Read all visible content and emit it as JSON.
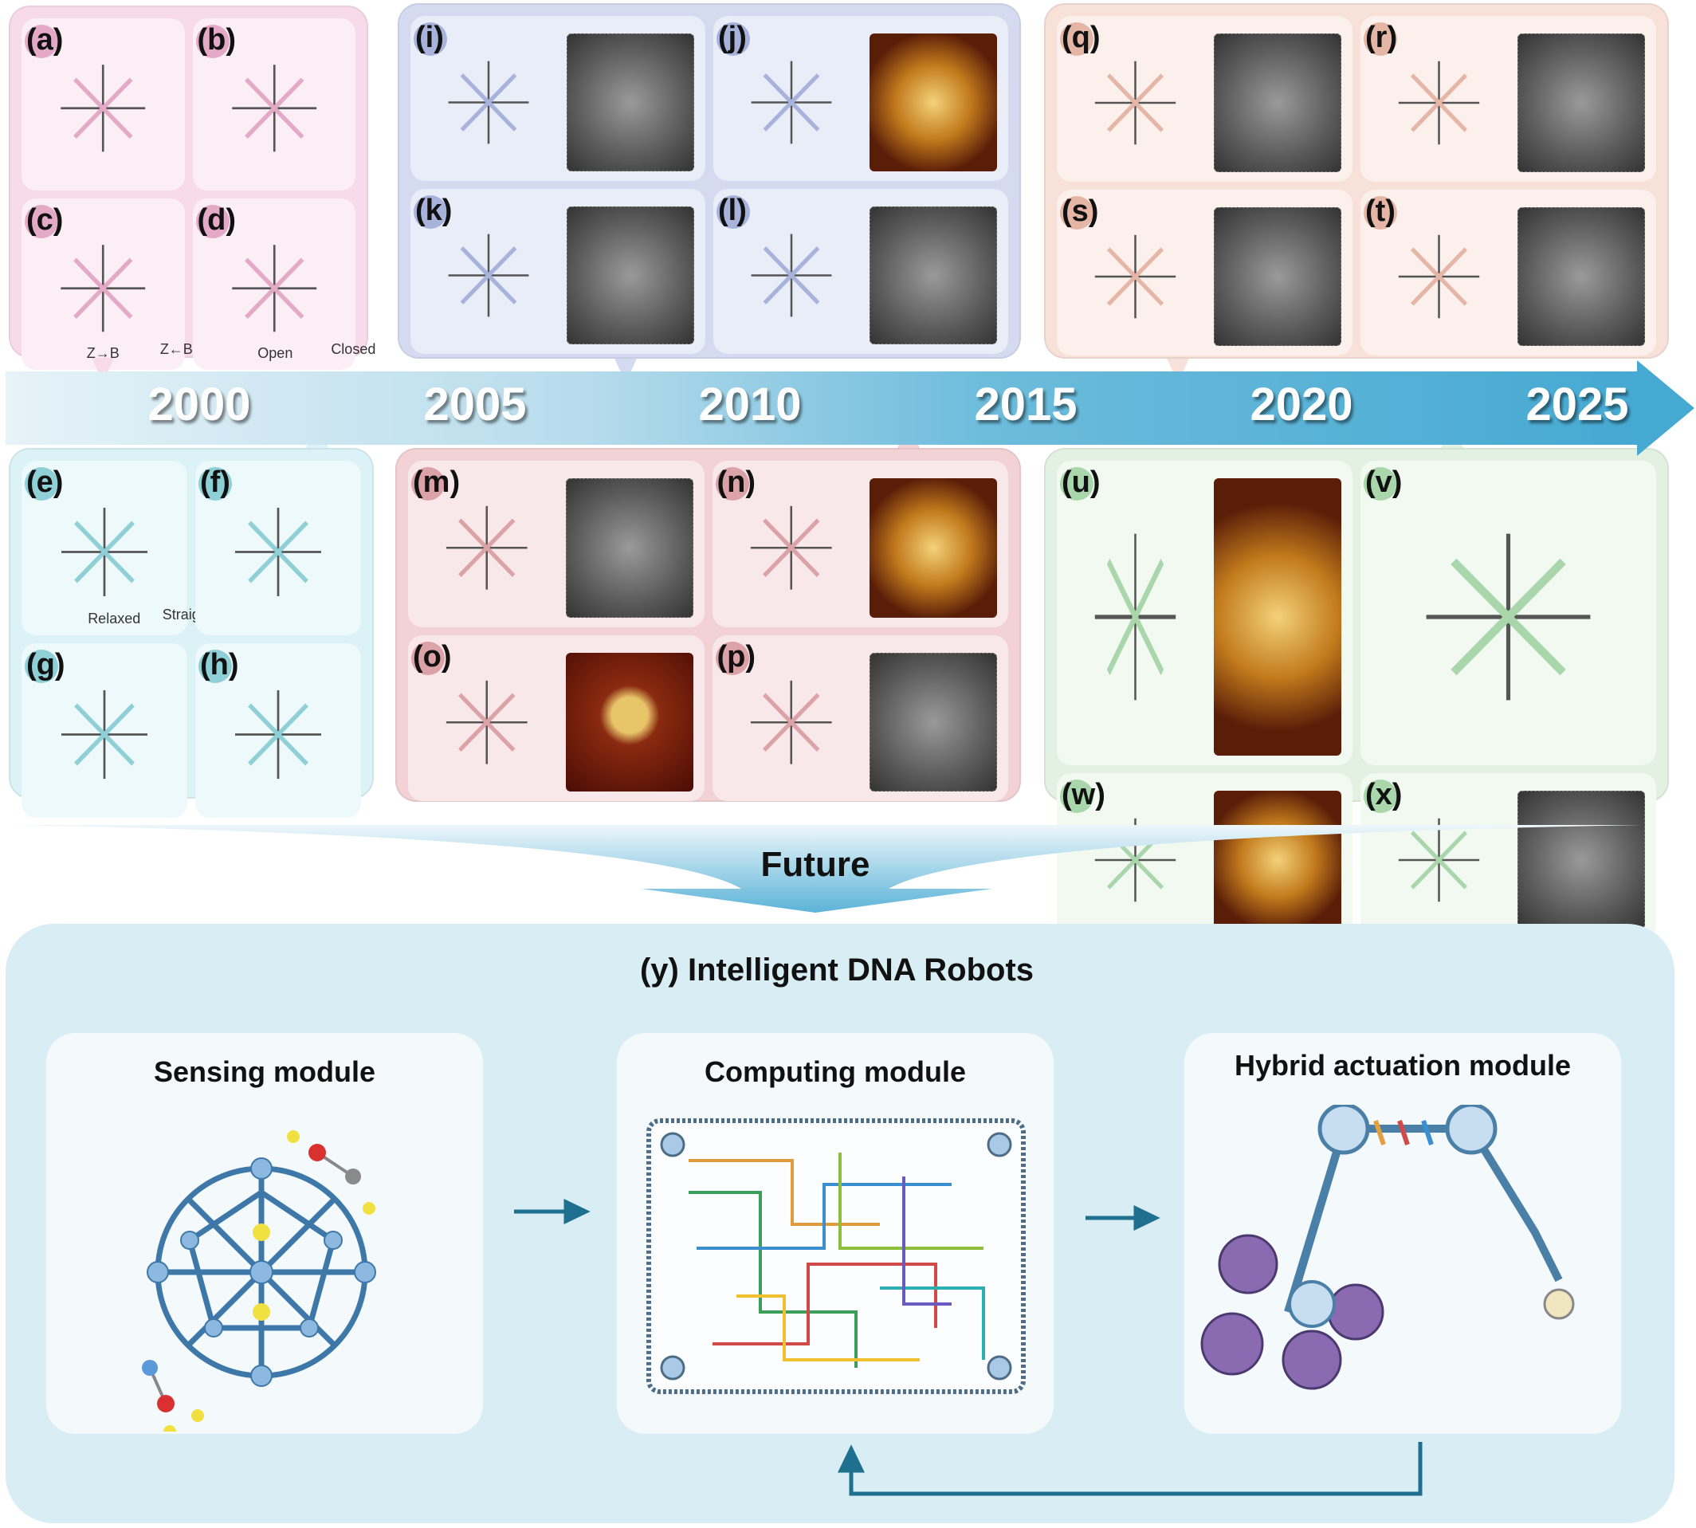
{
  "timeline": {
    "years": [
      "2000",
      "2005",
      "2010",
      "2015",
      "2020",
      "2025"
    ],
    "color": "#46a9d2"
  },
  "groups": [
    {
      "id": "g1",
      "bg": "#f7dbea",
      "inner": "#fbeef5",
      "dot": "#e3a9c6",
      "panels": [
        {
          "label": "(a)",
          "images": [
            "schematic"
          ]
        },
        {
          "label": "(b)",
          "images": [
            "schematic"
          ]
        },
        {
          "label": "(c)",
          "images": [
            "schematic"
          ],
          "text": [
            "Z→B",
            "Z←B"
          ]
        },
        {
          "label": "(d)",
          "images": [
            "schematic"
          ],
          "text": [
            "Open",
            "Closed"
          ]
        }
      ]
    },
    {
      "id": "g2",
      "bg": "#d4dbf0",
      "inner": "#e9edf8",
      "dot": "#a8b3dc",
      "panels": [
        {
          "label": "(i)",
          "images": [
            "schematic",
            "micrograph"
          ]
        },
        {
          "label": "(j)",
          "images": [
            "schematic",
            "afm"
          ]
        },
        {
          "label": "(k)",
          "images": [
            "schematic",
            "micrograph"
          ]
        },
        {
          "label": "(l)",
          "images": [
            "schematic",
            "micrograph"
          ]
        }
      ]
    },
    {
      "id": "g3",
      "bg": "#f7e1d9",
      "inner": "#fbf0ec",
      "dot": "#e5b6a6",
      "panels": [
        {
          "label": "(q)",
          "images": [
            "schematic",
            "micrograph"
          ]
        },
        {
          "label": "(r)",
          "images": [
            "schematic",
            "micrograph"
          ]
        },
        {
          "label": "(s)",
          "images": [
            "schematic",
            "micrograph"
          ]
        },
        {
          "label": "(t)",
          "images": [
            "schematic",
            "micrograph"
          ]
        }
      ]
    },
    {
      "id": "g4",
      "bg": "#dbf2f6",
      "inner": "#eef9fb",
      "dot": "#8fcfd6",
      "panels": [
        {
          "label": "(e)",
          "images": [
            "schematic"
          ],
          "text": [
            "Relaxed",
            "Straightened"
          ]
        },
        {
          "label": "(f)",
          "images": [
            "schematic"
          ]
        },
        {
          "label": "(g)",
          "images": [
            "schematic"
          ]
        },
        {
          "label": "(h)",
          "images": [
            "schematic"
          ]
        }
      ]
    },
    {
      "id": "g5",
      "bg": "#f2d2d5",
      "inner": "#f9e8ea",
      "dot": "#dba3a8",
      "panels": [
        {
          "label": "(m)",
          "images": [
            "schematic",
            "micrograph"
          ]
        },
        {
          "label": "(n)",
          "images": [
            "schematic",
            "afm"
          ]
        },
        {
          "label": "(o)",
          "images": [
            "schematic",
            "afm-red"
          ]
        },
        {
          "label": "(p)",
          "images": [
            "schematic",
            "micrograph"
          ]
        }
      ]
    },
    {
      "id": "g6",
      "bg": "#e2f1e2",
      "inner": "#f1f9f1",
      "dot": "#a9d6ab",
      "panels": [
        {
          "label": "(u)",
          "images": [
            "schematic",
            "afm"
          ]
        },
        {
          "label": "(v)",
          "images": [
            "schematic"
          ]
        },
        {
          "label": "(w)",
          "images": [
            "schematic",
            "afm"
          ]
        },
        {
          "label": "(x)",
          "images": [
            "schematic",
            "micrograph"
          ]
        }
      ]
    }
  ],
  "future": {
    "label": "Future"
  },
  "robots": {
    "title": "(y) Intelligent DNA Robots",
    "modules": [
      {
        "title": "Sensing module"
      },
      {
        "title": "Computing module"
      },
      {
        "title": "Hybrid actuation module"
      }
    ],
    "arrow_color": "#1f6f8f"
  }
}
